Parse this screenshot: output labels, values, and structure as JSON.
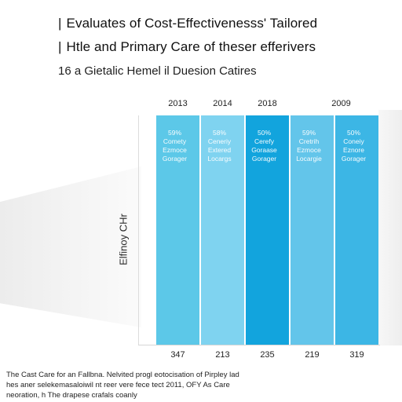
{
  "title": {
    "line1": "Evaluates of Cost-Effectivenesss' Tailored",
    "line2": "Htle and Primary Care of theser efferivers",
    "mark": "|"
  },
  "subtitle": "16 a Gietalic Hemel il Duesion Catires",
  "footnote": {
    "line1": "The Cast Care for an Fallbna. Nelvited progl eotocisation of Pirpley lad",
    "line2": "hes aner selekemasaloiwil nt reer vere fece tect 2011, OFY As Care",
    "line3": "neoration, h The drapese crafals coanly"
  },
  "colors": {
    "bar1": "#5cc8e8",
    "bar2": "#7fd3f0",
    "bar3": "#12a4dd",
    "bar4": "#63c5ea",
    "bar5": "#3cb6e5"
  },
  "chart_data": {
    "type": "bar",
    "ylabel": "Elfinoy CHr",
    "categories": [
      "2013",
      "2014",
      "2018",
      "",
      "2009"
    ],
    "bottom_values": [
      "347",
      "213",
      "235",
      "219",
      "319"
    ],
    "bar_labels": [
      [
        "59%",
        "Comety",
        "Ezmoce",
        "Gorager"
      ],
      [
        "58%",
        "Ceneriy",
        "Extered",
        "Locargs"
      ],
      [
        "50%",
        "Cerefy",
        "Goraase",
        "Gorager"
      ],
      [
        "59%",
        "Cretrih",
        "Ezmoce",
        "Locargie"
      ],
      [
        "50%",
        "Coneiy",
        "Eznore",
        "Gorager"
      ]
    ],
    "values": [
      100,
      100,
      100,
      100,
      100
    ],
    "ylim": [
      0,
      100
    ],
    "grid": false
  }
}
